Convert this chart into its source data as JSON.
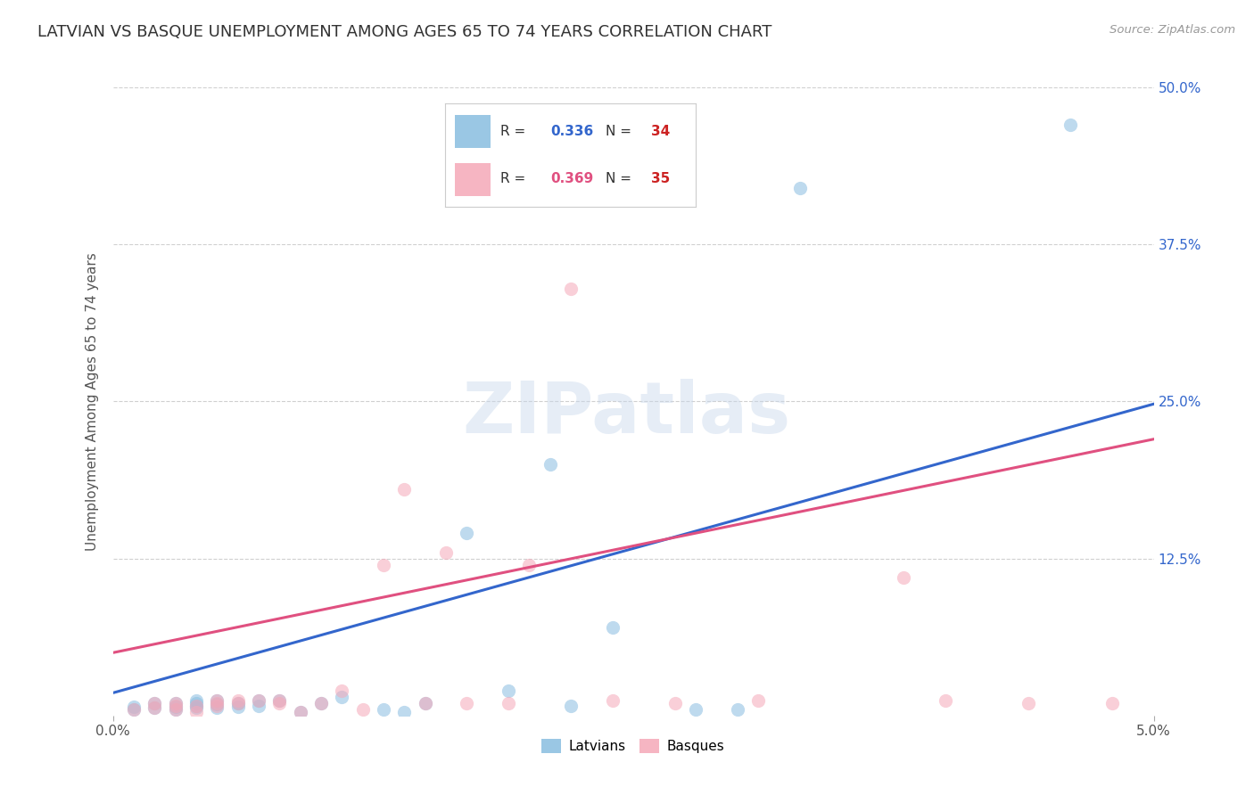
{
  "title": "LATVIAN VS BASQUE UNEMPLOYMENT AMONG AGES 65 TO 74 YEARS CORRELATION CHART",
  "source": "Source: ZipAtlas.com",
  "ylabel": "Unemployment Among Ages 65 to 74 years",
  "xlim": [
    0.0,
    0.05
  ],
  "ylim": [
    0.0,
    0.5
  ],
  "ytick_labels": [
    "50.0%",
    "37.5%",
    "25.0%",
    "12.5%"
  ],
  "ytick_values": [
    0.5,
    0.375,
    0.25,
    0.125
  ],
  "background_color": "#ffffff",
  "grid_color": "#d0d0d0",
  "latvian_color": "#89bde0",
  "basque_color": "#f5a8b8",
  "latvian_line_color": "#3366cc",
  "basque_line_color": "#e05080",
  "R_latvian": 0.336,
  "N_latvian": 34,
  "R_basque": 0.369,
  "N_basque": 35,
  "latvian_x": [
    0.001,
    0.001,
    0.002,
    0.002,
    0.003,
    0.003,
    0.003,
    0.004,
    0.004,
    0.004,
    0.004,
    0.005,
    0.005,
    0.005,
    0.006,
    0.006,
    0.007,
    0.007,
    0.008,
    0.009,
    0.01,
    0.011,
    0.013,
    0.014,
    0.015,
    0.017,
    0.019,
    0.021,
    0.022,
    0.024,
    0.028,
    0.03,
    0.033,
    0.046
  ],
  "latvian_y": [
    0.005,
    0.007,
    0.006,
    0.01,
    0.005,
    0.007,
    0.01,
    0.006,
    0.008,
    0.01,
    0.012,
    0.006,
    0.009,
    0.012,
    0.007,
    0.01,
    0.008,
    0.012,
    0.012,
    0.003,
    0.01,
    0.015,
    0.005,
    0.003,
    0.01,
    0.145,
    0.02,
    0.2,
    0.008,
    0.07,
    0.005,
    0.005,
    0.42,
    0.47
  ],
  "basque_x": [
    0.001,
    0.002,
    0.002,
    0.003,
    0.003,
    0.003,
    0.004,
    0.004,
    0.005,
    0.005,
    0.005,
    0.006,
    0.006,
    0.007,
    0.008,
    0.008,
    0.009,
    0.01,
    0.011,
    0.012,
    0.013,
    0.014,
    0.015,
    0.016,
    0.017,
    0.019,
    0.02,
    0.022,
    0.024,
    0.027,
    0.031,
    0.038,
    0.04,
    0.044,
    0.048
  ],
  "basque_y": [
    0.005,
    0.006,
    0.01,
    0.005,
    0.008,
    0.01,
    0.008,
    0.003,
    0.008,
    0.01,
    0.012,
    0.01,
    0.012,
    0.012,
    0.01,
    0.012,
    0.003,
    0.01,
    0.02,
    0.005,
    0.12,
    0.18,
    0.01,
    0.13,
    0.01,
    0.01,
    0.12,
    0.34,
    0.012,
    0.01,
    0.012,
    0.11,
    0.012,
    0.01,
    0.01
  ],
  "legend_latvian": "Latvians",
  "legend_basque": "Basques",
  "marker_size": 120,
  "alpha": 0.55,
  "title_fontsize": 13,
  "label_fontsize": 11,
  "tick_fontsize": 11,
  "legend_r_color": "#3366cc",
  "legend_r_basque_color": "#e05080",
  "legend_n_color": "#cc2222",
  "lv_line_intercept": 0.018,
  "lv_line_slope": 4.6,
  "bq_line_intercept": 0.05,
  "bq_line_slope": 3.4
}
